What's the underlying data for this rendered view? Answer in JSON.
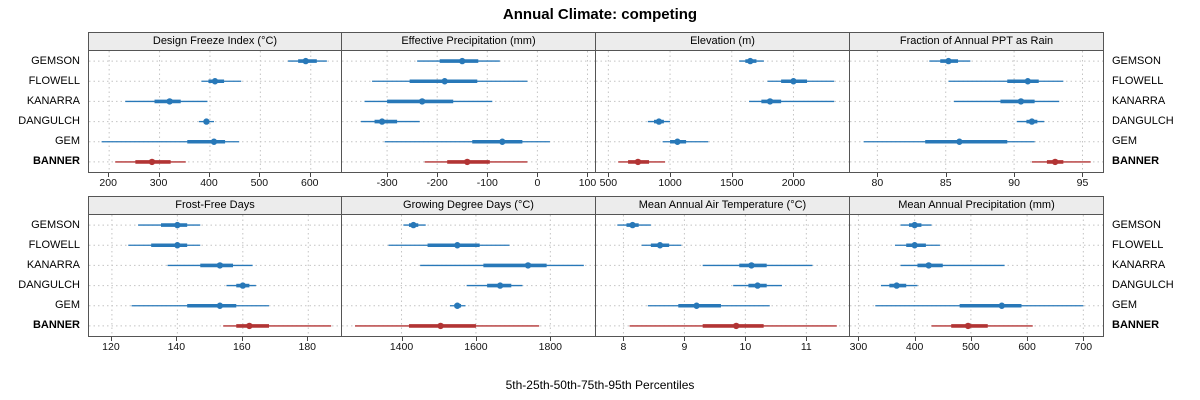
{
  "title": "Annual Climate: competing",
  "footer": "5th-25th-50th-75th-95th Percentiles",
  "stations": [
    "GEMSON",
    "FLOWELL",
    "KANARRA",
    "DANGULCH",
    "GEM",
    "BANNER"
  ],
  "highlight_station": "BANNER",
  "colors": {
    "normal": "#2878b8",
    "highlight": "#b23434",
    "grid": "#c4c4c4",
    "panel_border": "#555555",
    "panel_header_bg": "#ececec"
  },
  "chart_data": [
    {
      "type": "scatter",
      "interval": "5th-25th-50th-75th-95th percentiles per station",
      "title": "Design Freeze Index (°C)",
      "xlim": [
        160,
        660
      ],
      "ticks": [
        200,
        300,
        400,
        500,
        600
      ],
      "values": [
        [
          555,
          575,
          590,
          612,
          632
        ],
        [
          383,
          397,
          410,
          428,
          462
        ],
        [
          232,
          290,
          320,
          342,
          395
        ],
        [
          378,
          388,
          393,
          398,
          408
        ],
        [
          185,
          355,
          408,
          430,
          458
        ],
        [
          212,
          252,
          285,
          322,
          352
        ]
      ]
    },
    {
      "type": "scatter",
      "interval": "5th-25th-50th-75th-95th percentiles per station",
      "title": "Effective Precipitation (mm)",
      "xlim": [
        -390,
        115
      ],
      "ticks": [
        -300,
        -200,
        -100,
        0,
        100
      ],
      "values": [
        [
          -240,
          -195,
          -150,
          -118,
          -75
        ],
        [
          -330,
          -255,
          -185,
          -120,
          -20
        ],
        [
          -345,
          -300,
          -230,
          -168,
          -90
        ],
        [
          -352,
          -325,
          -310,
          -280,
          -235
        ],
        [
          -305,
          -130,
          -70,
          -30,
          25
        ],
        [
          -225,
          -180,
          -140,
          -95,
          -20
        ]
      ]
    },
    {
      "type": "scatter",
      "interval": "5th-25th-50th-75th-95th percentiles per station",
      "title": "Elevation (m)",
      "xlim": [
        400,
        2450
      ],
      "ticks": [
        500,
        1000,
        1500,
        2000
      ],
      "values": [
        [
          1560,
          1610,
          1650,
          1700,
          1760
        ],
        [
          1790,
          1900,
          2000,
          2110,
          2330
        ],
        [
          1640,
          1740,
          1810,
          1900,
          2330
        ],
        [
          820,
          870,
          910,
          950,
          1000
        ],
        [
          940,
          1000,
          1060,
          1130,
          1310
        ],
        [
          580,
          660,
          740,
          830,
          960
        ]
      ]
    },
    {
      "type": "scatter",
      "interval": "5th-25th-50th-75th-95th percentiles per station",
      "title": "Fraction of Annual PPT as Rain",
      "xlim": [
        78,
        96.5
      ],
      "ticks": [
        80,
        85,
        90,
        95
      ],
      "values": [
        [
          83.8,
          84.6,
          85.2,
          85.9,
          86.8
        ],
        [
          85.2,
          89.5,
          91.0,
          91.8,
          93.6
        ],
        [
          85.6,
          89.0,
          90.5,
          91.5,
          93.3
        ],
        [
          90.2,
          90.9,
          91.3,
          91.7,
          92.2
        ],
        [
          79.0,
          83.5,
          86.0,
          89.5,
          91.5
        ],
        [
          91.3,
          92.4,
          93.0,
          93.6,
          95.6
        ]
      ]
    },
    {
      "type": "scatter",
      "interval": "5th-25th-50th-75th-95th percentiles per station",
      "title": "Frost-Free Days",
      "xlim": [
        113,
        190
      ],
      "ticks": [
        120,
        140,
        160,
        180
      ],
      "values": [
        [
          128,
          135,
          140,
          143,
          147
        ],
        [
          125,
          132,
          140,
          143,
          147
        ],
        [
          137,
          147,
          153,
          157,
          163
        ],
        [
          155,
          158,
          160,
          162,
          164
        ],
        [
          126,
          143,
          153,
          158,
          168
        ],
        [
          154,
          158,
          162,
          168,
          187
        ]
      ]
    },
    {
      "type": "scatter",
      "interval": "5th-25th-50th-75th-95th percentiles per station",
      "title": "Growing Degree Days (°C)",
      "xlim": [
        1240,
        1920
      ],
      "ticks": [
        1400,
        1600,
        1800
      ],
      "values": [
        [
          1405,
          1420,
          1432,
          1445,
          1465
        ],
        [
          1365,
          1470,
          1550,
          1610,
          1690
        ],
        [
          1450,
          1620,
          1740,
          1790,
          1890
        ],
        [
          1575,
          1630,
          1665,
          1695,
          1725
        ],
        [
          1530,
          1542,
          1550,
          1560,
          1572
        ],
        [
          1275,
          1420,
          1505,
          1600,
          1770
        ]
      ]
    },
    {
      "type": "scatter",
      "interval": "5th-25th-50th-75th-95th percentiles per station",
      "title": "Mean Annual Air Temperature (°C)",
      "xlim": [
        7.55,
        11.7
      ],
      "ticks": [
        8,
        9,
        10,
        11
      ],
      "values": [
        [
          7.9,
          8.05,
          8.15,
          8.25,
          8.45
        ],
        [
          8.3,
          8.45,
          8.6,
          8.75,
          8.95
        ],
        [
          9.3,
          9.9,
          10.1,
          10.35,
          11.1
        ],
        [
          9.8,
          10.05,
          10.2,
          10.35,
          10.6
        ],
        [
          8.4,
          8.9,
          9.2,
          9.6,
          10.4
        ],
        [
          8.1,
          9.3,
          9.85,
          10.3,
          11.5
        ]
      ]
    },
    {
      "type": "scatter",
      "interval": "5th-25th-50th-75th-95th percentiles per station",
      "title": "Mean Annual Precipitation (mm)",
      "xlim": [
        285,
        735
      ],
      "ticks": [
        300,
        400,
        500,
        600,
        700
      ],
      "values": [
        [
          375,
          390,
          400,
          412,
          430
        ],
        [
          365,
          385,
          400,
          420,
          445
        ],
        [
          375,
          405,
          425,
          450,
          560
        ],
        [
          340,
          355,
          368,
          385,
          405
        ],
        [
          330,
          480,
          555,
          590,
          700
        ],
        [
          430,
          465,
          495,
          530,
          610
        ]
      ]
    }
  ]
}
